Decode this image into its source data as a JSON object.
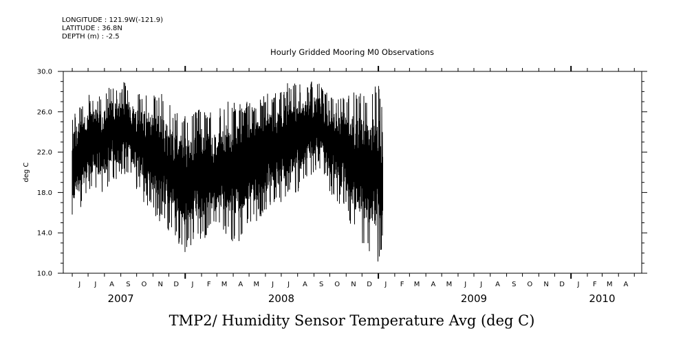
{
  "header": {
    "longitude": "LONGITUDE : 121.9W(-121.9)",
    "latitude": "LATITUDE : 36.8N",
    "depth": "DEPTH (m) : -2.5"
  },
  "chart_data": {
    "type": "line",
    "title": "Hourly Gridded Mooring M0 Observations",
    "footer_title": "TMP2/ Humidity Sensor Temperature Avg (deg C)",
    "ylabel": "deg C",
    "xlabel": "",
    "ylim": [
      10.0,
      30.0
    ],
    "yticks": [
      "10.0",
      "14.0",
      "18.0",
      "22.0",
      "26.0",
      "30.0"
    ],
    "xlim": [
      "2007-05-15",
      "2010-05-15"
    ],
    "month_labels": [
      "J",
      "J",
      "A",
      "S",
      "O",
      "N",
      "D",
      "J",
      "F",
      "M",
      "A",
      "M",
      "J",
      "J",
      "A",
      "S",
      "O",
      "N",
      "D",
      "J",
      "F",
      "M",
      "A",
      "M",
      "J",
      "J",
      "A",
      "S",
      "O",
      "N",
      "D",
      "J",
      "F",
      "M",
      "A"
    ],
    "year_labels": [
      {
        "label": "2007",
        "month": "2007-09"
      },
      {
        "label": "2008",
        "month": "2008-07"
      },
      {
        "label": "2009",
        "month": "2009-07"
      },
      {
        "label": "2010",
        "month": "2010-03"
      }
    ],
    "grid": false,
    "series": [
      {
        "values_description": "hourly temperature, min/max envelope per half-month",
        "x": [
          "2007-06-01",
          "2007-06-15",
          "2007-07-01",
          "2007-07-15",
          "2007-08-01",
          "2007-08-15",
          "2007-09-01",
          "2007-09-15",
          "2007-10-01",
          "2007-10-15",
          "2007-11-01",
          "2007-11-15",
          "2007-12-01",
          "2007-12-15",
          "2008-01-01",
          "2008-01-15",
          "2008-02-01",
          "2008-02-15",
          "2008-03-01",
          "2008-03-15",
          "2008-04-01",
          "2008-04-15",
          "2008-05-01",
          "2008-05-15",
          "2008-06-01",
          "2008-06-15",
          "2008-07-01",
          "2008-07-15",
          "2008-08-01",
          "2008-08-15",
          "2008-09-01",
          "2008-09-15",
          "2008-10-01",
          "2008-10-15",
          "2008-11-01",
          "2008-11-15",
          "2008-12-01",
          "2008-12-15",
          "2009-01-01",
          "2009-01-10"
        ],
        "y_min": [
          15,
          16,
          18,
          18,
          18,
          19,
          19,
          20,
          18,
          17,
          16,
          15,
          14,
          13,
          12,
          13,
          13,
          14,
          14,
          14,
          13,
          13,
          15,
          15,
          16,
          16,
          17,
          18,
          18,
          19,
          20,
          20,
          18,
          17,
          16,
          14,
          13,
          12,
          11,
          13
        ],
        "y_max": [
          26,
          27,
          28,
          28,
          28,
          29,
          29,
          29,
          28,
          28,
          28,
          28,
          27,
          26,
          26,
          26,
          27,
          26,
          26,
          27,
          27,
          27,
          27,
          27,
          28,
          28,
          28,
          29,
          29,
          29,
          29,
          29,
          28,
          28,
          28,
          28,
          28,
          28,
          29,
          26
        ]
      }
    ]
  }
}
